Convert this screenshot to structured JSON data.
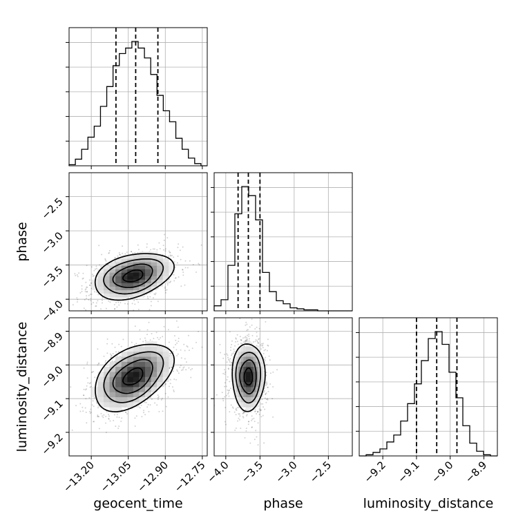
{
  "chart_data": {
    "type": "corner",
    "params": [
      {
        "name": "geocent_time",
        "range": [
          -13.29,
          -12.73
        ],
        "ticks": [
          -13.2,
          -13.05,
          -12.9,
          -12.75
        ],
        "tick_labels": [
          "−13.20",
          "−13.05",
          "−12.90",
          "−12.75"
        ]
      },
      {
        "name": "phase",
        "range": [
          -4.17,
          -2.15
        ],
        "ticks": [
          -4.0,
          -3.5,
          -3.0,
          -2.5
        ],
        "tick_labels": [
          "−4.0",
          "−3.5",
          "−3.0",
          "−2.5"
        ]
      },
      {
        "name": "luminosity_distance",
        "range": [
          -9.27,
          -8.86
        ],
        "ticks": [
          -9.2,
          -9.1,
          -9.0,
          -8.9
        ],
        "tick_labels": [
          "−9.2",
          "−9.1",
          "−9.0",
          "−8.9"
        ]
      }
    ],
    "histograms": [
      {
        "param": "geocent_time",
        "bin_edges": [
          -13.29,
          -12.73
        ],
        "counts": [
          1,
          6,
          15,
          26,
          36,
          54,
          72,
          91,
          102,
          107,
          113,
          107,
          98,
          83,
          64,
          50,
          40,
          25,
          15,
          7,
          2,
          0
        ],
        "quantile_lines": [
          -13.1,
          -13.02,
          -12.93
        ]
      },
      {
        "param": "phase",
        "bin_edges": [
          -4.17,
          -2.15
        ],
        "counts": [
          5,
          11,
          45,
          96,
          123,
          114,
          90,
          38,
          19,
          10,
          7,
          3,
          2,
          1,
          1,
          0,
          0,
          0,
          0,
          0
        ],
        "quantile_lines": [
          -3.82,
          -3.67,
          -3.5
        ]
      },
      {
        "param": "luminosity_distance",
        "bin_edges": [
          -9.27,
          -8.86
        ],
        "counts": [
          0,
          1,
          3,
          6,
          12,
          18,
          30,
          45,
          62,
          82,
          101,
          107,
          96,
          72,
          50,
          26,
          11,
          4,
          1,
          0
        ],
        "quantile_lines": [
          -9.1,
          -9.04,
          -8.98
        ]
      }
    ],
    "pairs": [
      {
        "x": "geocent_time",
        "y": "phase",
        "mean": [
          -13.03,
          -3.66
        ],
        "sd": [
          0.08,
          0.17
        ],
        "rho": 0.35,
        "levels": [
          0.5,
          1.0,
          1.5,
          2.0
        ]
      },
      {
        "x": "geocent_time",
        "y": "luminosity_distance",
        "mean": [
          -13.03,
          -9.035
        ],
        "sd": [
          0.08,
          0.05
        ],
        "rho": 0.45,
        "levels": [
          0.5,
          1.0,
          1.5,
          2.0
        ]
      },
      {
        "x": "phase",
        "y": "luminosity_distance",
        "mean": [
          -3.67,
          -9.035
        ],
        "sd": [
          0.12,
          0.05
        ],
        "rho": 0.0,
        "levels": [
          0.5,
          1.0,
          1.5,
          2.0
        ]
      }
    ],
    "grid": true
  }
}
